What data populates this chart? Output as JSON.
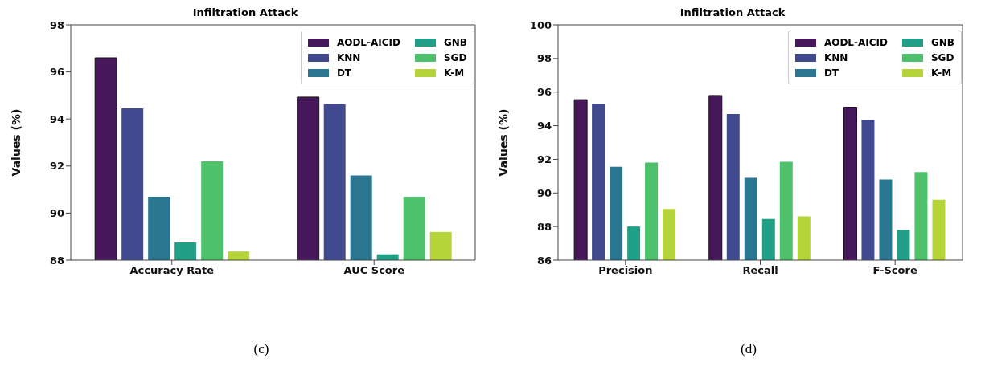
{
  "chart_data": [
    {
      "type": "bar",
      "title": "Infiltration Attack",
      "ylabel": "Values (%)",
      "categories": [
        "Accuracy Rate",
        "AUC Score"
      ],
      "series": [
        {
          "name": "AODL-AICID",
          "color": "#46185b",
          "values": [
            96.6,
            94.93
          ]
        },
        {
          "name": "KNN",
          "color": "#414a8e",
          "values": [
            94.45,
            94.63
          ]
        },
        {
          "name": "DT",
          "color": "#2a7690",
          "values": [
            90.7,
            91.6
          ]
        },
        {
          "name": "GNB",
          "color": "#22a087",
          "values": [
            88.75,
            88.25
          ]
        },
        {
          "name": "SGD",
          "color": "#4fc06b",
          "values": [
            92.2,
            90.7
          ]
        },
        {
          "name": "K-M",
          "color": "#b5d43a",
          "values": [
            88.37,
            89.2
          ]
        }
      ],
      "ylim": [
        88,
        98
      ],
      "yticks": [
        88,
        90,
        92,
        94,
        96,
        98
      ],
      "legend": "top right",
      "annotations": [
        "(c)"
      ]
    },
    {
      "type": "bar",
      "title": "Infiltration Attack",
      "ylabel": "Values (%)",
      "categories": [
        "Precision",
        "Recall",
        "F-Score"
      ],
      "series": [
        {
          "name": "AODL-AICID",
          "color": "#46185b",
          "values": [
            95.55,
            95.8,
            95.1
          ]
        },
        {
          "name": "KNN",
          "color": "#414a8e",
          "values": [
            95.3,
            94.7,
            94.35
          ]
        },
        {
          "name": "DT",
          "color": "#2a7690",
          "values": [
            91.55,
            90.9,
            90.8
          ]
        },
        {
          "name": "GNB",
          "color": "#22a087",
          "values": [
            88.0,
            88.45,
            87.8
          ]
        },
        {
          "name": "SGD",
          "color": "#4fc06b",
          "values": [
            91.8,
            91.85,
            91.25
          ]
        },
        {
          "name": "K-M",
          "color": "#b5d43a",
          "values": [
            89.05,
            88.6,
            89.6
          ]
        }
      ],
      "ylim": [
        86,
        100
      ],
      "yticks": [
        86,
        88,
        90,
        92,
        94,
        96,
        98,
        100
      ],
      "legend": "top right",
      "annotations": [
        "(d)"
      ]
    }
  ]
}
